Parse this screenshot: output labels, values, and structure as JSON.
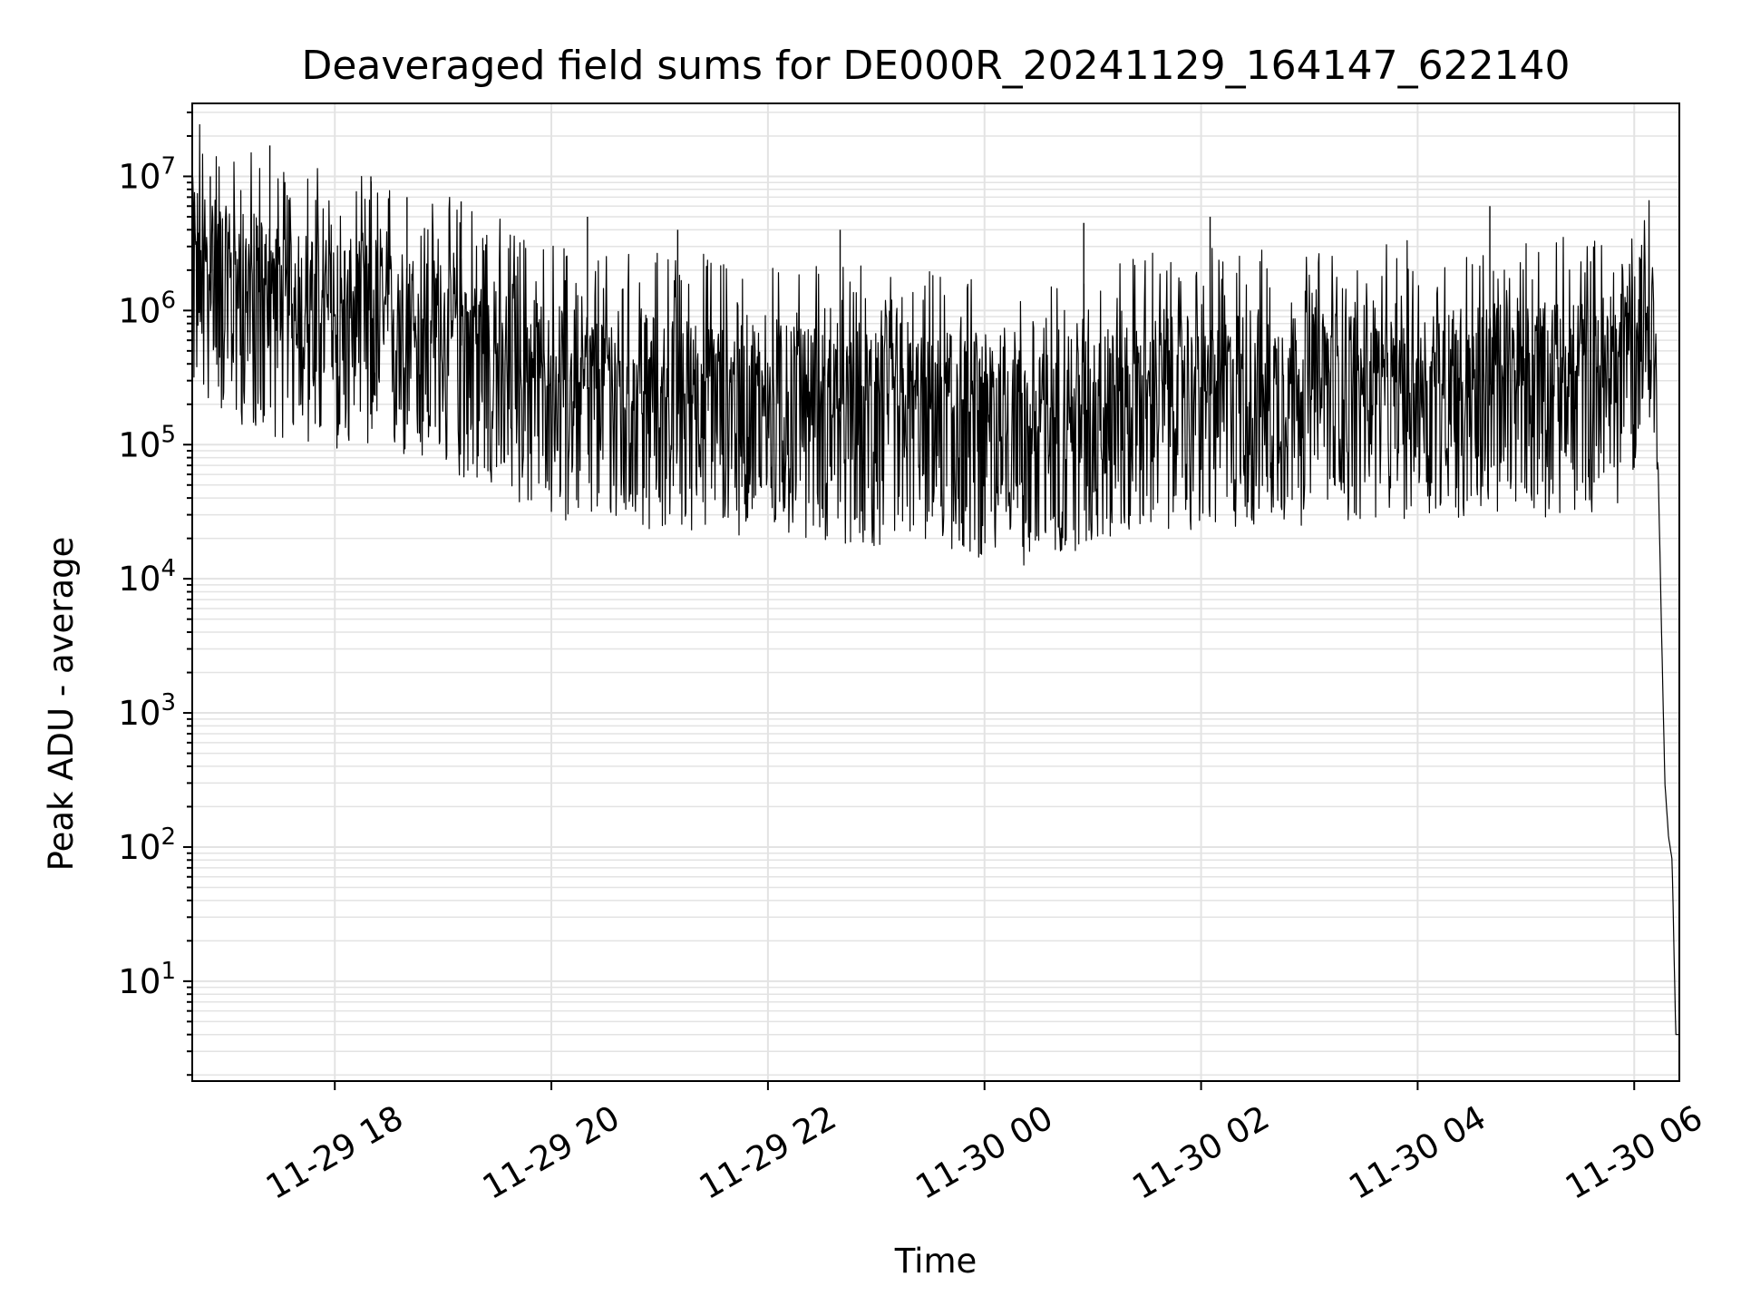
{
  "chart_data": {
    "type": "line",
    "title": "Deaveraged field sums for DE000R_20241129_164147_622140",
    "xlabel": "Time",
    "ylabel": "Peak ADU - average",
    "yscale": "log",
    "ylim": [
      1.8,
      35000000
    ],
    "xlim": [
      "2024-11-29 16:41",
      "2024-11-30 06:25"
    ],
    "grid": true,
    "line_color": "#000000",
    "x_ticks": [
      {
        "label": "11-29 18",
        "t": "2024-11-29 18:00"
      },
      {
        "label": "11-29 20",
        "t": "2024-11-29 20:00"
      },
      {
        "label": "11-29 22",
        "t": "2024-11-29 22:00"
      },
      {
        "label": "11-30 00",
        "t": "2024-11-30 00:00"
      },
      {
        "label": "11-30 02",
        "t": "2024-11-30 02:00"
      },
      {
        "label": "11-30 04",
        "t": "2024-11-30 04:00"
      },
      {
        "label": "11-30 06",
        "t": "2024-11-30 06:00"
      }
    ],
    "y_ticks": [
      {
        "base": "10",
        "exp": "1",
        "value": 10
      },
      {
        "base": "10",
        "exp": "2",
        "value": 100
      },
      {
        "base": "10",
        "exp": "3",
        "value": 1000
      },
      {
        "base": "10",
        "exp": "4",
        "value": 10000
      },
      {
        "base": "10",
        "exp": "5",
        "value": 100000
      },
      {
        "base": "10",
        "exp": "6",
        "value": 1000000
      },
      {
        "base": "10",
        "exp": "7",
        "value": 10000000
      }
    ],
    "series": [
      {
        "points": [
          [
            "2024-11-29 16:41",
            2500000
          ],
          [
            "2024-11-29 17:00",
            1500000
          ],
          [
            "2024-11-29 17:20",
            1200000
          ],
          [
            "2024-11-29 17:40",
            1000000
          ],
          [
            "2024-11-29 18:00",
            900000
          ],
          [
            "2024-11-29 18:20",
            800000
          ],
          [
            "2024-11-29 18:40",
            700000
          ],
          [
            "2024-11-29 19:00",
            600000
          ],
          [
            "2024-11-29 19:20",
            500000
          ],
          [
            "2024-11-29 19:40",
            350000
          ],
          [
            "2024-11-29 20:00",
            280000
          ],
          [
            "2024-11-29 20:30",
            250000
          ],
          [
            "2024-11-29 21:00",
            230000
          ],
          [
            "2024-11-29 21:30",
            220000
          ],
          [
            "2024-11-29 22:00",
            200000
          ],
          [
            "2024-11-29 22:30",
            180000
          ],
          [
            "2024-11-29 23:00",
            170000
          ],
          [
            "2024-11-29 23:30",
            160000
          ],
          [
            "2024-11-30 00:00",
            140000
          ],
          [
            "2024-11-30 00:30",
            120000
          ],
          [
            "2024-11-30 01:00",
            180000
          ],
          [
            "2024-11-30 01:30",
            220000
          ],
          [
            "2024-11-30 02:00",
            230000
          ],
          [
            "2024-11-30 02:30",
            240000
          ],
          [
            "2024-11-30 03:00",
            250000
          ],
          [
            "2024-11-30 03:30",
            260000
          ],
          [
            "2024-11-30 04:00",
            270000
          ],
          [
            "2024-11-30 04:30",
            280000
          ],
          [
            "2024-11-30 05:00",
            280000
          ],
          [
            "2024-11-30 05:30",
            300000
          ],
          [
            "2024-11-30 05:50",
            350000
          ],
          [
            "2024-11-30 06:05",
            900000
          ],
          [
            "2024-11-30 06:10",
            700000
          ],
          [
            "2024-11-30 06:13",
            100000
          ],
          [
            "2024-11-30 06:15",
            5000
          ],
          [
            "2024-11-30 06:17",
            300
          ],
          [
            "2024-11-30 06:19",
            120
          ],
          [
            "2024-11-30 06:21",
            80
          ],
          [
            "2024-11-30 06:23",
            4
          ],
          [
            "2024-11-30 06:25",
            4
          ]
        ]
      }
    ],
    "spikes": [
      [
        "2024-11-29 17:24",
        17000000
      ],
      [
        "2024-11-29 16:51",
        10000000
      ],
      [
        "2024-11-29 18:20",
        10000000
      ],
      [
        "2024-11-29 18:40",
        7000000
      ],
      [
        "2024-11-29 19:10",
        6500000
      ],
      [
        "2024-11-29 20:20",
        5000000
      ],
      [
        "2024-11-29 21:10",
        4000000
      ],
      [
        "2024-11-29 22:40",
        4000000
      ],
      [
        "2024-11-30 00:55",
        4500000
      ],
      [
        "2024-11-30 02:05",
        5000000
      ],
      [
        "2024-11-30 04:40",
        6000000
      ],
      [
        "2024-11-30 06:03",
        2500000
      ]
    ]
  }
}
